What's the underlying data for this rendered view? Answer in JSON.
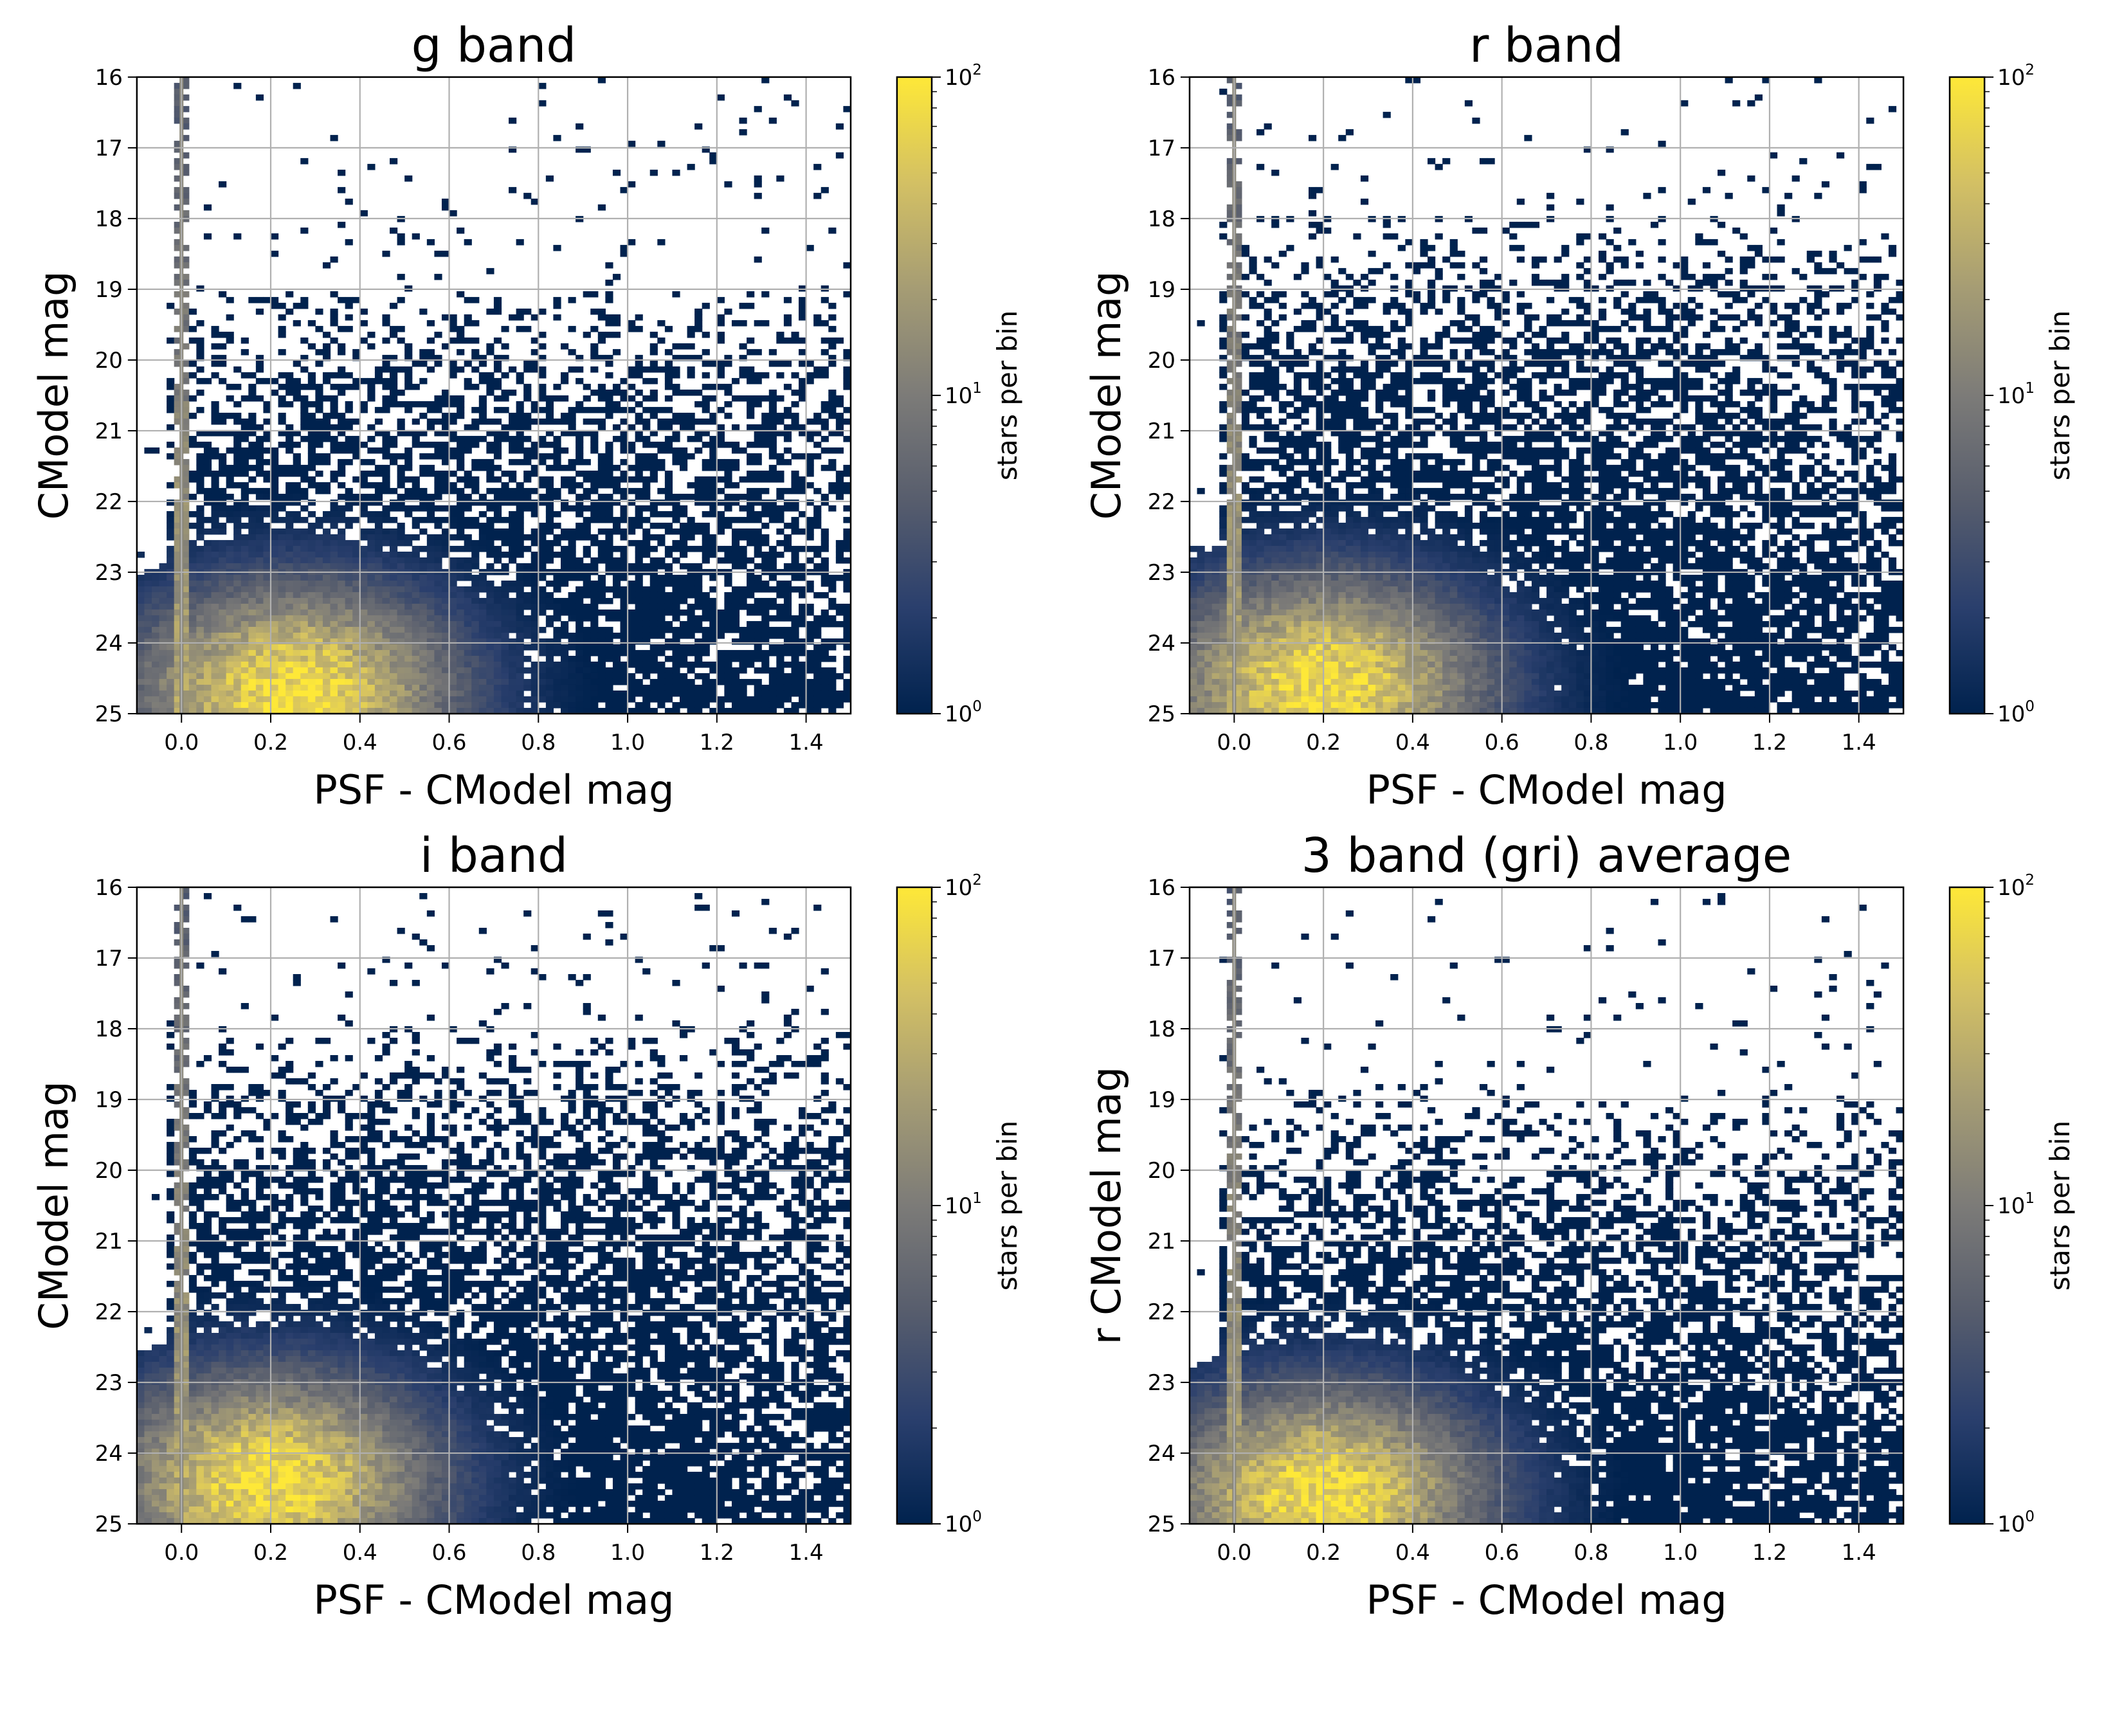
{
  "figure": {
    "colormap_name": "cividis",
    "colormap_stops": [
      "#00224e",
      "#2a3f6d",
      "#575d6d",
      "#7c7b78",
      "#a59c74",
      "#d3c064",
      "#fee838"
    ],
    "grid_color": "#b0b0b0"
  },
  "chart_data": [
    {
      "type": "heatmap",
      "title": "g band",
      "xlabel": "PSF - CModel mag",
      "ylabel": "CModel mag",
      "xlim": [
        -0.1,
        1.5
      ],
      "ylim": [
        25,
        16
      ],
      "xticks": [
        0.0,
        0.2,
        0.4,
        0.6,
        0.8,
        1.0,
        1.2,
        1.4
      ],
      "xtick_labels": [
        "0.0",
        "0.2",
        "0.4",
        "0.6",
        "0.8",
        "1.0",
        "1.2",
        "1.4"
      ],
      "yticks": [
        16,
        17,
        18,
        19,
        20,
        21,
        22,
        23,
        24,
        25
      ],
      "ytick_labels": [
        "16",
        "17",
        "18",
        "19",
        "20",
        "21",
        "22",
        "23",
        "24",
        "25"
      ],
      "grid": true,
      "colorbar": {
        "label": "stars per bin",
        "scale": "log",
        "range": [
          1,
          100
        ],
        "tick_bases": [
          "10",
          "10",
          "10"
        ],
        "tick_exponents": [
          "0",
          "1",
          "2"
        ]
      },
      "density": {
        "stellar_locus_x": 0.0,
        "blob_center": [
          0.25,
          24.7
        ],
        "dense_region_top_mag": 21.0,
        "sparse_region_top_mag": 16.0,
        "peak_stars_per_bin": 100
      }
    },
    {
      "type": "heatmap",
      "title": "r band",
      "xlabel": "PSF - CModel mag",
      "ylabel": "CModel mag",
      "xlim": [
        -0.1,
        1.5
      ],
      "ylim": [
        25,
        16
      ],
      "xticks": [
        0.0,
        0.2,
        0.4,
        0.6,
        0.8,
        1.0,
        1.2,
        1.4
      ],
      "xtick_labels": [
        "0.0",
        "0.2",
        "0.4",
        "0.6",
        "0.8",
        "1.0",
        "1.2",
        "1.4"
      ],
      "yticks": [
        16,
        17,
        18,
        19,
        20,
        21,
        22,
        23,
        24,
        25
      ],
      "ytick_labels": [
        "16",
        "17",
        "18",
        "19",
        "20",
        "21",
        "22",
        "23",
        "24",
        "25"
      ],
      "grid": true,
      "colorbar": {
        "label": "stars per bin",
        "scale": "log",
        "range": [
          1,
          100
        ],
        "tick_bases": [
          "10",
          "10",
          "10"
        ],
        "tick_exponents": [
          "0",
          "1",
          "2"
        ]
      },
      "density": {
        "stellar_locus_x": 0.0,
        "blob_center": [
          0.2,
          24.6
        ],
        "dense_region_top_mag": 20.0,
        "sparse_region_top_mag": 16.5,
        "peak_stars_per_bin": 100
      }
    },
    {
      "type": "heatmap",
      "title": "i band",
      "xlabel": "PSF - CModel mag",
      "ylabel": "CModel mag",
      "xlim": [
        -0.1,
        1.5
      ],
      "ylim": [
        25,
        16
      ],
      "xticks": [
        0.0,
        0.2,
        0.4,
        0.6,
        0.8,
        1.0,
        1.2,
        1.4
      ],
      "xtick_labels": [
        "0.0",
        "0.2",
        "0.4",
        "0.6",
        "0.8",
        "1.0",
        "1.2",
        "1.4"
      ],
      "yticks": [
        16,
        17,
        18,
        19,
        20,
        21,
        22,
        23,
        24,
        25
      ],
      "ytick_labels": [
        "16",
        "17",
        "18",
        "19",
        "20",
        "21",
        "22",
        "23",
        "24",
        "25"
      ],
      "grid": true,
      "colorbar": {
        "label": "stars per bin",
        "scale": "log",
        "range": [
          1,
          100
        ],
        "tick_bases": [
          "10",
          "10",
          "10"
        ],
        "tick_exponents": [
          "0",
          "1",
          "2"
        ]
      },
      "density": {
        "stellar_locus_x": 0.0,
        "blob_center": [
          0.2,
          24.4
        ],
        "dense_region_top_mag": 20.0,
        "sparse_region_top_mag": 16.0,
        "peak_stars_per_bin": 100
      }
    },
    {
      "type": "heatmap",
      "title": "3 band (gri) average",
      "xlabel": "PSF - CModel mag",
      "ylabel": "r CModel mag",
      "xlim": [
        -0.1,
        1.5
      ],
      "ylim": [
        25,
        16
      ],
      "xticks": [
        0.0,
        0.2,
        0.4,
        0.6,
        0.8,
        1.0,
        1.2,
        1.4
      ],
      "xtick_labels": [
        "0.0",
        "0.2",
        "0.4",
        "0.6",
        "0.8",
        "1.0",
        "1.2",
        "1.4"
      ],
      "yticks": [
        16,
        17,
        18,
        19,
        20,
        21,
        22,
        23,
        24,
        25
      ],
      "ytick_labels": [
        "16",
        "17",
        "18",
        "19",
        "20",
        "21",
        "22",
        "23",
        "24",
        "25"
      ],
      "grid": true,
      "colorbar": {
        "label": "stars per bin",
        "scale": "log",
        "range": [
          1,
          100
        ],
        "tick_bases": [
          "10",
          "10",
          "10"
        ],
        "tick_exponents": [
          "0",
          "1",
          "2"
        ]
      },
      "density": {
        "stellar_locus_x": 0.0,
        "blob_center": [
          0.2,
          24.6
        ],
        "dense_region_top_mag": 21.0,
        "sparse_region_top_mag": 16.5,
        "peak_stars_per_bin": 100
      }
    }
  ]
}
